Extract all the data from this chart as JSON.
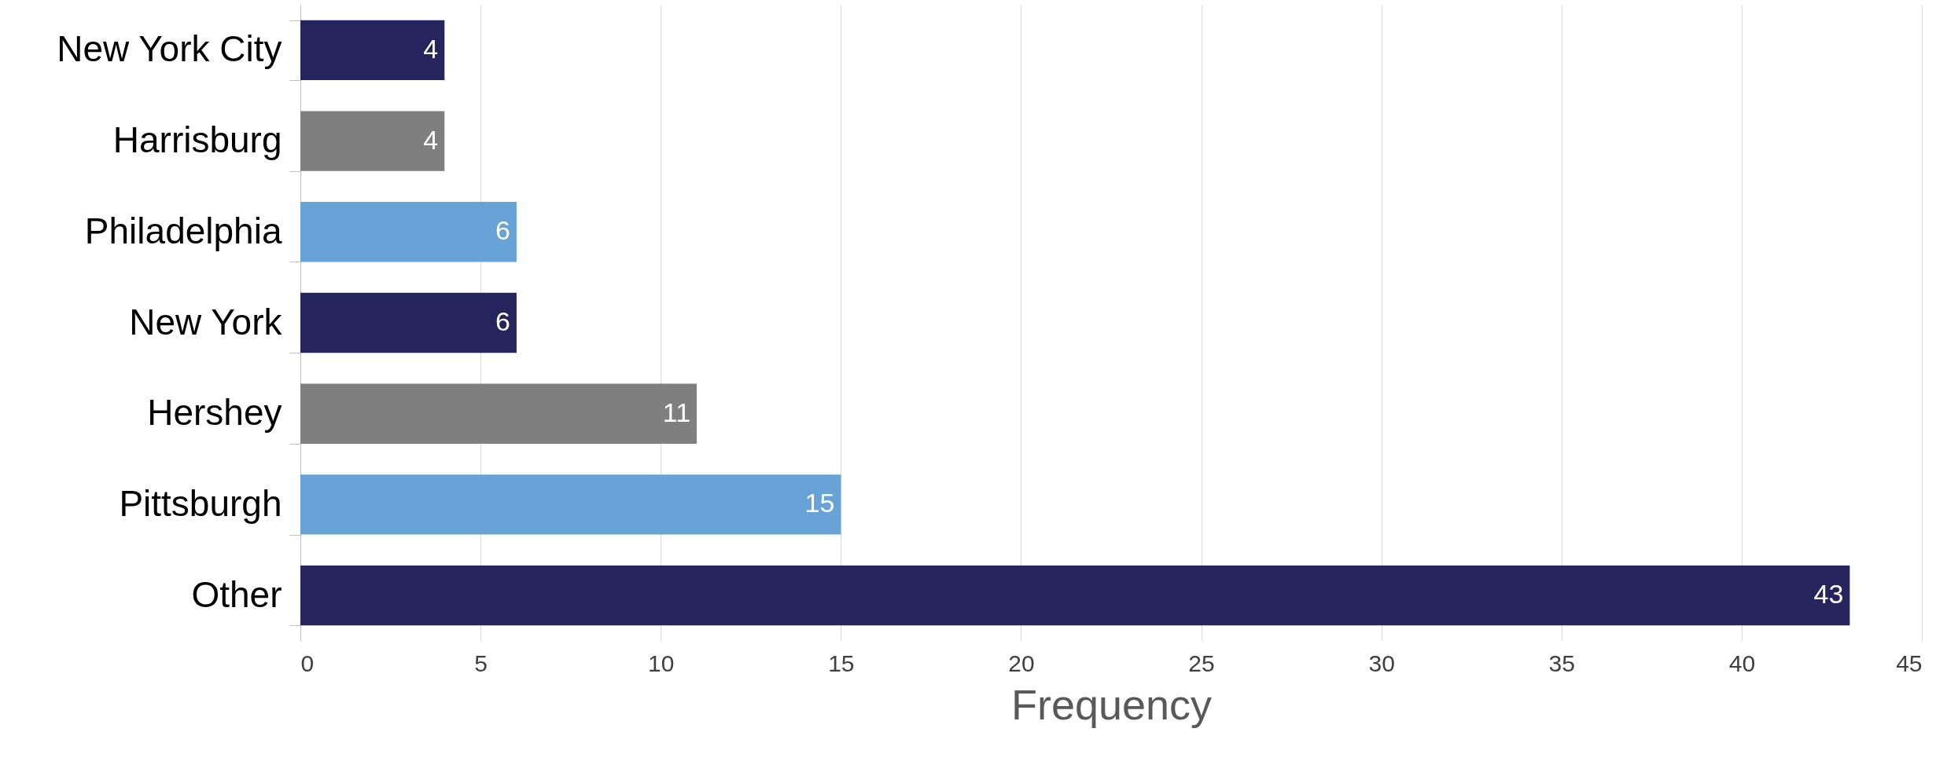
{
  "chart_data": {
    "type": "bar",
    "orientation": "horizontal",
    "xlabel": "Frequency",
    "categories": [
      "New York City",
      "Harrisburg",
      "Philadelphia",
      "New York",
      "Hershey",
      "Pittsburgh",
      "Other"
    ],
    "values": [
      4,
      4,
      6,
      6,
      11,
      15,
      43
    ],
    "colors": [
      "#26245c",
      "#7f7f7f",
      "#67a3d6",
      "#26245c",
      "#7f7f7f",
      "#67a3d6",
      "#26245c"
    ],
    "xlim": [
      0,
      45
    ],
    "xticks": [
      0,
      5,
      10,
      15,
      20,
      25,
      30,
      35,
      40,
      45
    ],
    "grid": "x",
    "data_labels": true
  }
}
